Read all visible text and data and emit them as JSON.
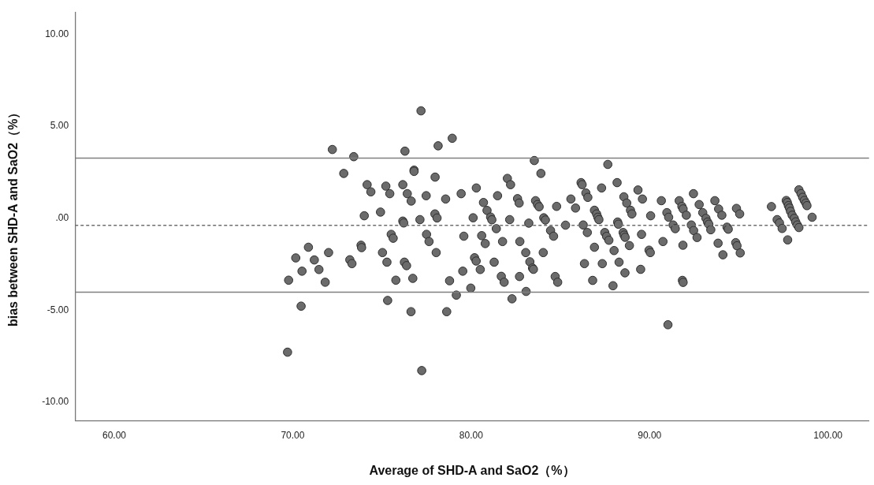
{
  "chart_data": {
    "type": "scatter",
    "xlabel": "Average of SHD-A and SaO2（%）",
    "ylabel": "bias between SHD-A and SaO2（%）",
    "xlim": [
      57.8,
      102.3
    ],
    "ylim": [
      -11.0,
      11.2
    ],
    "xticks": [
      {
        "value": 60,
        "label": "60.00"
      },
      {
        "value": 70,
        "label": "70.00"
      },
      {
        "value": 80,
        "label": "80.00"
      },
      {
        "value": 90,
        "label": "90.00"
      },
      {
        "value": 100,
        "label": "100.00"
      }
    ],
    "yticks": [
      {
        "value": -10,
        "label": "-10.00"
      },
      {
        "value": -5,
        "label": "-5.00"
      },
      {
        "value": 0,
        "label": ".00"
      },
      {
        "value": 5,
        "label": "5.00"
      },
      {
        "value": 10,
        "label": "10.00"
      }
    ],
    "grid": false,
    "legend": false,
    "marker": "circle",
    "ref_lines": [
      {
        "axis": "y",
        "value": 3.26,
        "color": "#7f7f7f",
        "line_style": "solid"
      },
      {
        "axis": "y",
        "value": -0.39,
        "color": "#6f6f6f",
        "line_style": "dashed"
      },
      {
        "axis": "y",
        "value": -4.02,
        "color": "#7f7f7f",
        "line_style": "solid"
      }
    ],
    "series": [
      {
        "color": "#6b6b6b",
        "x": [
          77.19,
          72.22,
          73.42,
          76.29,
          76.8,
          76.8,
          72.86,
          74.17,
          74.38,
          75.22,
          75.44,
          76.17,
          76.42,
          76.64,
          77.48,
          74.01,
          74.92,
          76.17,
          76.22,
          77.13,
          75.52,
          75.63,
          77.5,
          77.64,
          70.88,
          70.17,
          71.21,
          72.01,
          73.83,
          73.86,
          70.52,
          71.47,
          73.2,
          73.32,
          75.03,
          75.28,
          76.26,
          76.38,
          69.77,
          71.82,
          75.78,
          76.73,
          70.47,
          75.32,
          76.63,
          69.71,
          77.23,
          78.94,
          78.15,
          83.54,
          83.91,
          77.98,
          82.03,
          82.21,
          80.29,
          79.44,
          78.57,
          81.48,
          82.6,
          82.69,
          83.61,
          83.72,
          83.81,
          84.79,
          85.59,
          85.85,
          80.69,
          80.89,
          81.09,
          81.16,
          77.97,
          78.09,
          80.11,
          82.16,
          84.07,
          84.16,
          83.23,
          85.29,
          81.41,
          84.45,
          84.62,
          79.59,
          80.59,
          80.79,
          81.76,
          82.73,
          78.04,
          83.06,
          84.04,
          80.19,
          80.28,
          81.29,
          83.29,
          83.44,
          83.49,
          79.53,
          80.51,
          81.69,
          81.85,
          82.71,
          84.71,
          84.85,
          78.79,
          79.98,
          79.17,
          82.29,
          83.08,
          78.63,
          87.66,
          86.16,
          86.22,
          88.18,
          87.31,
          86.43,
          86.54,
          88.56,
          88.72,
          89.35,
          89.6,
          88.93,
          89.01,
          86.91,
          87.03,
          87.1,
          87.16,
          90.66,
          90.06,
          91.66,
          91.81,
          91.88,
          92.06,
          90.97,
          91.07,
          91.32,
          91.44,
          92.46,
          92.78,
          92.98,
          93.16,
          93.25,
          93.32,
          93.43,
          93.66,
          93.87,
          94.05,
          94.34,
          92.34,
          92.47,
          92.66,
          88.21,
          88.25,
          86.28,
          86.51,
          87.49,
          87.59,
          87.72,
          88.52,
          88.57,
          88.63,
          89.55,
          88.87,
          90.75,
          91.87,
          93.84,
          94.11,
          86.91,
          88.01,
          89.97,
          90.04,
          86.35,
          87.35,
          88.29,
          88.62,
          89.5,
          86.81,
          87.95,
          91.84,
          91.88,
          91.03,
          94.41,
          94.87,
          95.05,
          94.83,
          94.9,
          95.08,
          96.83,
          97.15,
          97.28,
          97.43,
          97.74,
          97.66,
          97.72,
          97.78,
          97.84,
          97.9,
          97.99,
          98.11,
          98.19,
          98.28,
          98.37,
          98.37,
          98.49,
          98.58,
          98.67,
          98.76,
          98.82,
          99.11
        ],
        "values": [
          5.83,
          3.73,
          3.34,
          3.64,
          2.61,
          2.54,
          2.43,
          1.82,
          1.43,
          1.74,
          1.33,
          1.82,
          1.33,
          0.93,
          1.22,
          0.13,
          0.33,
          -0.16,
          -0.26,
          -0.08,
          -0.88,
          -1.09,
          -0.88,
          -1.27,
          -1.58,
          -2.16,
          -2.27,
          -1.87,
          -1.47,
          -1.6,
          -2.88,
          -2.79,
          -2.26,
          -2.47,
          -1.87,
          -2.39,
          -2.39,
          -2.58,
          -3.37,
          -3.48,
          -3.37,
          -3.27,
          -4.78,
          -4.47,
          -5.08,
          -7.28,
          -8.28,
          4.34,
          3.93,
          3.13,
          2.43,
          2.23,
          2.16,
          1.82,
          1.64,
          1.33,
          1.04,
          1.22,
          1.06,
          0.82,
          0.95,
          0.74,
          0.62,
          0.64,
          1.04,
          0.55,
          0.85,
          0.42,
          0.06,
          -0.09,
          0.23,
          0.01,
          0.02,
          -0.08,
          0.02,
          -0.1,
          -0.27,
          -0.38,
          -0.57,
          -0.67,
          -0.98,
          -0.98,
          -0.95,
          -1.38,
          -1.27,
          -1.27,
          -1.87,
          -1.87,
          -1.87,
          -2.15,
          -2.33,
          -2.39,
          -2.37,
          -2.71,
          -2.78,
          -2.88,
          -2.79,
          -3.16,
          -3.48,
          -3.17,
          -3.17,
          -3.48,
          -3.4,
          -3.8,
          -4.18,
          -4.38,
          -3.98,
          -5.08,
          2.92,
          1.93,
          1.82,
          1.93,
          1.64,
          1.37,
          1.13,
          1.16,
          0.82,
          1.53,
          1.04,
          0.43,
          0.23,
          0.43,
          0.23,
          0.05,
          -0.08,
          0.95,
          0.13,
          0.95,
          0.64,
          0.5,
          0.16,
          0.3,
          0.05,
          -0.37,
          -0.57,
          1.33,
          0.74,
          0.3,
          -0.01,
          -0.21,
          -0.33,
          -0.63,
          0.95,
          0.5,
          0.16,
          -0.49,
          -0.37,
          -0.67,
          -1.05,
          -0.21,
          -0.33,
          -0.37,
          -0.78,
          -0.78,
          -0.99,
          -1.2,
          -0.78,
          -0.92,
          -1.04,
          -0.88,
          -1.49,
          -1.27,
          -1.47,
          -1.36,
          -1.99,
          -1.58,
          -1.76,
          -1.74,
          -1.87,
          -2.47,
          -2.47,
          -2.39,
          -2.97,
          -2.78,
          -3.38,
          -3.67,
          -3.38,
          -3.49,
          -5.79,
          -0.6,
          0.53,
          0.23,
          -1.33,
          -1.5,
          -1.89,
          0.63,
          -0.08,
          -0.26,
          -0.56,
          -1.18,
          0.96,
          0.85,
          0.68,
          0.55,
          0.37,
          0.16,
          -0.01,
          -0.2,
          -0.37,
          -0.51,
          1.54,
          1.33,
          1.13,
          0.96,
          0.82,
          0.68,
          0.05
        ]
      }
    ]
  }
}
